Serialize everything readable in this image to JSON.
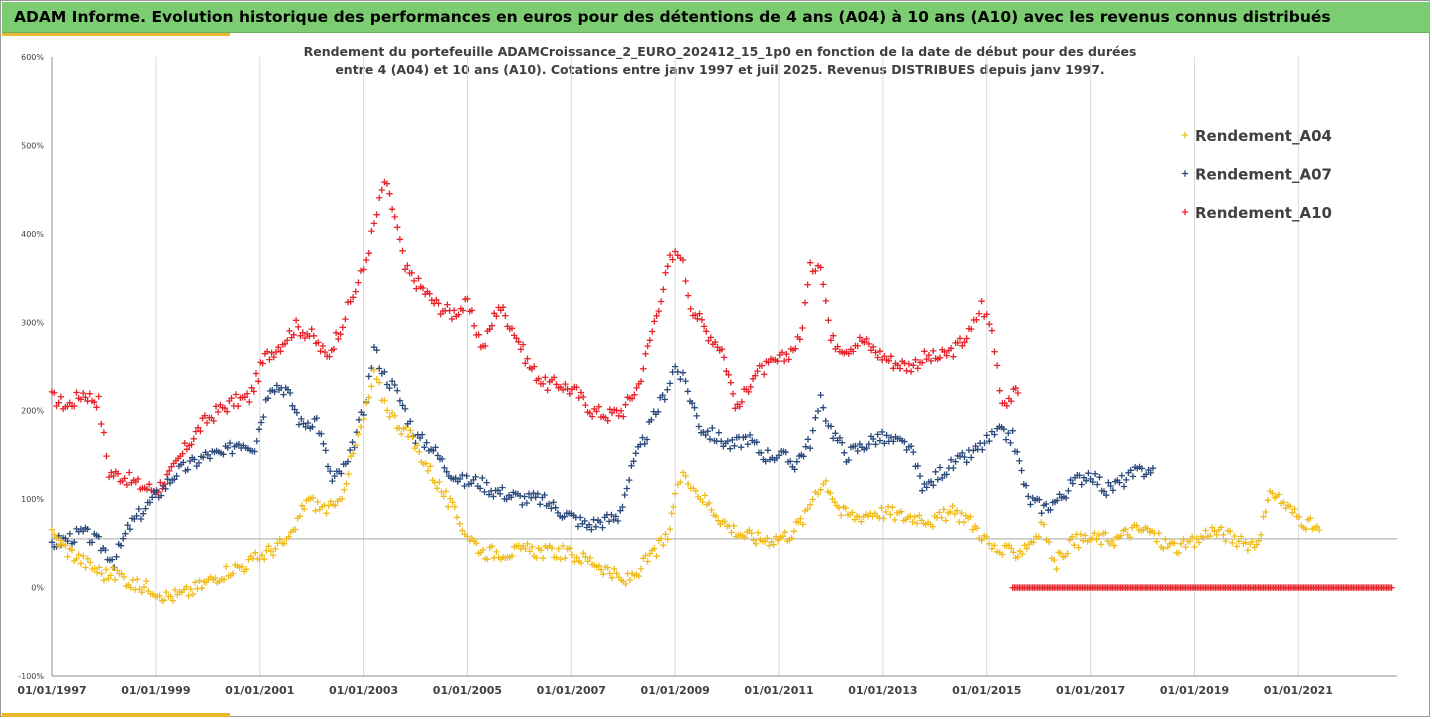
{
  "header": {
    "title": "ADAM Informe. Evolution historique des performances en euros pour des détentions de 4 ans (A04) à 10 ans (A10) avec les revenus connus distribués"
  },
  "chart_data": {
    "type": "scatter",
    "title_line1": "Rendement du portefeuille ADAMCroissance_2_EURO_202412_15_1p0  en fonction de la date de début pour des durées",
    "title_line2": "entre 4 (A04) et 10 ans (A10). Cotations entre janv 1997 et juil 2025. Revenus DISTRIBUES depuis janv 1997.",
    "xlim": [
      1997.0,
      2022.9
    ],
    "ylim": [
      -100,
      600
    ],
    "y_ticks": [
      {
        "value": -100,
        "label": "-100%"
      },
      {
        "value": 0,
        "label": "0%"
      },
      {
        "value": 100,
        "label": "100%"
      },
      {
        "value": 200,
        "label": "200%"
      },
      {
        "value": 300,
        "label": "300%"
      },
      {
        "value": 400,
        "label": "400%"
      },
      {
        "value": 500,
        "label": "500%"
      },
      {
        "value": 600,
        "label": "600%"
      }
    ],
    "x_ticks": [
      {
        "value": 1997,
        "label": "01/01/1997"
      },
      {
        "value": 1999,
        "label": "01/01/1999"
      },
      {
        "value": 2001,
        "label": "01/01/2001"
      },
      {
        "value": 2003,
        "label": "01/01/2003"
      },
      {
        "value": 2005,
        "label": "01/01/2005"
      },
      {
        "value": 2007,
        "label": "01/01/2007"
      },
      {
        "value": 2009,
        "label": "01/01/2009"
      },
      {
        "value": 2011,
        "label": "01/01/2011"
      },
      {
        "value": 2013,
        "label": "01/01/2013"
      },
      {
        "value": 2015,
        "label": "01/01/2015"
      },
      {
        "value": 2017,
        "label": "01/01/2017"
      },
      {
        "value": 2019,
        "label": "01/01/2019"
      },
      {
        "value": 2021,
        "label": "01/01/2021"
      }
    ],
    "reference_line": 55,
    "grid": "vertical",
    "legend_position": "right",
    "series": [
      {
        "name": "Rendement_A04",
        "color": "#f0bc1c",
        "x": [
          1997.0,
          1997.3,
          1997.6,
          1998.0,
          1998.3,
          1998.6,
          1998.9,
          1999.2,
          1999.5,
          1999.8,
          2000.1,
          2000.4,
          2000.7,
          2001.0,
          2001.3,
          2001.6,
          2001.9,
          2002.2,
          2002.5,
          2002.8,
          2003.0,
          2003.2,
          2003.4,
          2003.6,
          2003.9,
          2004.2,
          2004.5,
          2004.8,
          2005.0,
          2005.3,
          2005.6,
          2005.9,
          2006.2,
          2006.5,
          2006.8,
          2007.1,
          2007.4,
          2007.7,
          2008.0,
          2008.3,
          2008.6,
          2008.9,
          2009.0,
          2009.2,
          2009.4,
          2009.7,
          2010.0,
          2010.3,
          2010.6,
          2010.9,
          2011.2,
          2011.5,
          2011.7,
          2011.9,
          2012.2,
          2012.5,
          2012.8,
          2013.1,
          2013.4,
          2013.7,
          2014.0,
          2014.3,
          2014.6,
          2014.9,
          2015.1,
          2015.3,
          2015.6,
          2015.9,
          2016.1,
          2016.3,
          2016.6,
          2016.9,
          2017.2,
          2017.5,
          2017.8,
          2018.1,
          2018.4,
          2018.7,
          2019.0,
          2019.3,
          2019.6,
          2019.9,
          2020.2,
          2020.5,
          2020.8,
          2021.1,
          2021.4
        ],
        "y": [
          60,
          42,
          30,
          15,
          15,
          2,
          0,
          -10,
          -8,
          0,
          10,
          20,
          25,
          35,
          45,
          55,
          100,
          90,
          90,
          150,
          190,
          240,
          210,
          190,
          170,
          140,
          110,
          80,
          60,
          40,
          40,
          40,
          42,
          40,
          40,
          35,
          30,
          20,
          5,
          20,
          40,
          60,
          110,
          130,
          110,
          90,
          70,
          60,
          55,
          55,
          60,
          80,
          110,
          120,
          85,
          80,
          85,
          85,
          80,
          80,
          75,
          85,
          80,
          60,
          45,
          40,
          40,
          55,
          70,
          25,
          50,
          55,
          55,
          55,
          65,
          65,
          50,
          45,
          50,
          65,
          60,
          50,
          50,
          110,
          90,
          75,
          65
        ]
      },
      {
        "name": "Rendement_A07",
        "color": "#2c4a7c",
        "x": [
          1997.0,
          1997.3,
          1997.6,
          1997.9,
          1998.2,
          1998.5,
          1998.8,
          1999.1,
          1999.4,
          1999.7,
          2000.0,
          2000.3,
          2000.6,
          2000.9,
          2001.2,
          2001.5,
          2001.8,
          2002.1,
          2002.4,
          2002.7,
          2003.0,
          2003.2,
          2003.4,
          2003.6,
          2003.8,
          2004.0,
          2004.3,
          2004.6,
          2004.9,
          2005.2,
          2005.5,
          2005.8,
          2006.1,
          2006.4,
          2006.7,
          2007.0,
          2007.3,
          2007.6,
          2007.9,
          2008.2,
          2008.5,
          2008.8,
          2009.0,
          2009.2,
          2009.5,
          2009.8,
          2010.1,
          2010.4,
          2010.7,
          2011.0,
          2011.3,
          2011.6,
          2011.8,
          2012.0,
          2012.3,
          2012.6,
          2012.9,
          2013.2,
          2013.5,
          2013.8,
          2014.1,
          2014.4,
          2014.7,
          2015.0,
          2015.2,
          2015.5,
          2015.8,
          2016.1,
          2016.4,
          2016.7,
          2017.0,
          2017.3,
          2017.6,
          2017.9,
          2018.2
        ],
        "y": [
          50,
          55,
          62,
          50,
          30,
          70,
          90,
          110,
          130,
          140,
          150,
          150,
          165,
          160,
          230,
          225,
          185,
          190,
          120,
          140,
          200,
          270,
          240,
          225,
          200,
          170,
          160,
          135,
          120,
          120,
          110,
          105,
          100,
          100,
          90,
          80,
          70,
          75,
          80,
          140,
          180,
          220,
          250,
          230,
          180,
          170,
          160,
          170,
          150,
          150,
          140,
          165,
          210,
          180,
          150,
          160,
          170,
          165,
          160,
          110,
          130,
          140,
          150,
          165,
          175,
          170,
          100,
          90,
          100,
          120,
          130,
          110,
          120,
          130,
          135
        ]
      },
      {
        "name": "Rendement_A10",
        "color": "#e8232a",
        "x": [
          1997.0,
          1997.3,
          1997.6,
          1997.9,
          1998.1,
          1998.4,
          1998.7,
          1999.0,
          1999.3,
          1999.6,
          1999.9,
          2000.2,
          2000.5,
          2000.8,
          2001.1,
          2001.4,
          2001.7,
          2002.0,
          2002.3,
          2002.6,
          2002.8,
          2003.0,
          2003.2,
          2003.4,
          2003.6,
          2003.8,
          2004.1,
          2004.4,
          2004.7,
          2005.0,
          2005.3,
          2005.6,
          2005.9,
          2006.2,
          2006.5,
          2006.8,
          2007.1,
          2007.4,
          2007.7,
          2008.0,
          2008.3,
          2008.6,
          2008.9,
          2009.1,
          2009.3,
          2009.6,
          2009.9,
          2010.2,
          2010.5,
          2010.8,
          2011.1,
          2011.4,
          2011.6,
          2011.8,
          2012.0,
          2012.3,
          2012.6,
          2012.9,
          2013.2,
          2013.5,
          2013.8,
          2014.1,
          2014.4,
          2014.7,
          2014.9,
          2015.1,
          2015.3,
          2015.6
        ],
        "y": [
          215,
          205,
          220,
          210,
          130,
          125,
          115,
          110,
          130,
          160,
          185,
          200,
          210,
          215,
          260,
          275,
          295,
          285,
          260,
          300,
          330,
          360,
          410,
          460,
          420,
          360,
          340,
          320,
          310,
          320,
          270,
          320,
          290,
          250,
          230,
          230,
          220,
          200,
          195,
          200,
          230,
          300,
          370,
          380,
          320,
          290,
          270,
          200,
          240,
          250,
          260,
          280,
          360,
          370,
          280,
          270,
          280,
          265,
          255,
          250,
          260,
          260,
          270,
          290,
          320,
          290,
          210,
          220
        ]
      }
    ],
    "a10_zero_band": {
      "x_start": 2015.5,
      "x_end": 2022.8,
      "y": 0
    }
  }
}
